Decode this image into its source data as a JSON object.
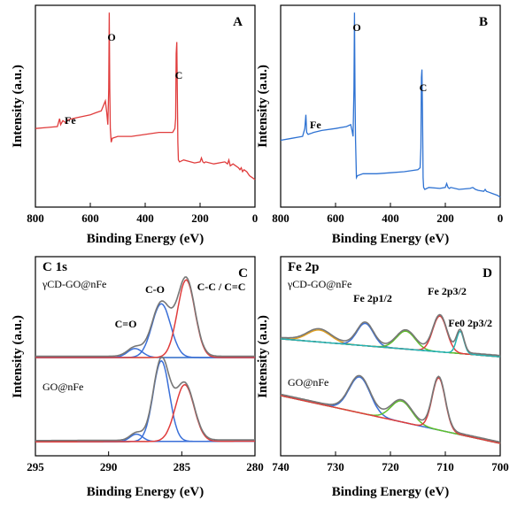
{
  "chart_data": [
    {
      "type": "line",
      "panel_letter": "A",
      "xlabel": "Binding Energy (eV)",
      "ylabel": "Intensity (a.u.)",
      "xlim": [
        800,
        0
      ],
      "x_ticks": [
        "800",
        "600",
        "400",
        "200",
        "0"
      ],
      "color": "#e03c3c",
      "peak_labels": [
        "Fe",
        "O",
        "C"
      ],
      "series": [
        {
          "x": [
            800,
            760,
            720,
            712,
            708,
            700,
            690,
            680,
            650,
            600,
            580,
            560,
            545,
            540,
            536,
            533,
            531,
            529,
            527,
            524,
            520,
            500,
            450,
            400,
            350,
            300,
            292,
            289,
            287,
            285,
            283,
            281,
            279,
            275,
            260,
            220,
            200,
            195,
            190,
            185,
            180,
            150,
            110,
            100,
            95,
            90,
            80,
            60,
            55,
            50,
            45,
            40,
            30,
            20,
            10,
            0
          ],
          "y": [
            0.4,
            0.405,
            0.41,
            0.45,
            0.42,
            0.44,
            0.43,
            0.445,
            0.455,
            0.47,
            0.48,
            0.49,
            0.54,
            0.48,
            0.42,
            0.6,
            0.99,
            0.6,
            0.4,
            0.33,
            0.35,
            0.36,
            0.36,
            0.37,
            0.38,
            0.38,
            0.4,
            0.45,
            0.78,
            0.84,
            0.58,
            0.33,
            0.24,
            0.23,
            0.24,
            0.225,
            0.23,
            0.25,
            0.23,
            0.225,
            0.23,
            0.22,
            0.23,
            0.22,
            0.24,
            0.21,
            0.22,
            0.2,
            0.19,
            0.2,
            0.18,
            0.19,
            0.18,
            0.16,
            0.15,
            0.14
          ]
        }
      ]
    },
    {
      "type": "line",
      "panel_letter": "B",
      "xlabel": "Binding Energy (eV)",
      "ylabel": "Intensity (a.u.)",
      "xlim": [
        800,
        0
      ],
      "x_ticks": [
        "800",
        "600",
        "400",
        "200",
        "0"
      ],
      "color": "#2e72d2",
      "peak_labels": [
        "Fe",
        "O",
        "C"
      ],
      "series": [
        {
          "x": [
            800,
            760,
            720,
            712,
            708,
            705,
            700,
            690,
            680,
            650,
            600,
            560,
            545,
            540,
            536,
            533,
            531,
            529,
            527,
            524,
            520,
            500,
            450,
            400,
            350,
            300,
            292,
            289,
            287,
            285,
            283,
            281,
            279,
            275,
            260,
            220,
            200,
            195,
            190,
            185,
            180,
            150,
            110,
            100,
            90,
            80,
            60,
            55,
            50,
            40,
            30,
            20,
            10,
            0
          ],
          "y": [
            0.34,
            0.35,
            0.36,
            0.4,
            0.47,
            0.38,
            0.37,
            0.375,
            0.38,
            0.39,
            0.4,
            0.41,
            0.42,
            0.39,
            0.36,
            0.6,
            0.99,
            0.58,
            0.34,
            0.15,
            0.16,
            0.17,
            0.17,
            0.175,
            0.18,
            0.19,
            0.2,
            0.3,
            0.66,
            0.7,
            0.45,
            0.15,
            0.1,
            0.09,
            0.1,
            0.095,
            0.1,
            0.12,
            0.1,
            0.095,
            0.1,
            0.09,
            0.095,
            0.1,
            0.09,
            0.085,
            0.08,
            0.09,
            0.08,
            0.075,
            0.07,
            0.065,
            0.06,
            0.05
          ]
        }
      ]
    },
    {
      "type": "line",
      "panel_letter": "C",
      "panel_title": "C 1s",
      "xlabel": "Binding Energy (eV)",
      "ylabel": "Intensity (a.u.)",
      "xlim": [
        295,
        280
      ],
      "x_ticks": [
        "295",
        "290",
        "285",
        "280"
      ],
      "sample_labels": [
        "γCD-GO@nFe",
        "GO@nFe"
      ],
      "peak_labels": [
        "C=O",
        "C-O",
        "C-C / C=C"
      ],
      "top": {
        "offset": 0.575,
        "baseline": [
          0.0,
          0.0
        ],
        "components": [
          {
            "name": "C=O",
            "center": 288.2,
            "height": 0.06,
            "fwhm": 1.2,
            "color": "#3a6fd8"
          },
          {
            "name": "C-O",
            "center": 286.4,
            "height": 0.36,
            "fwhm": 1.5,
            "color": "#3a6fd8"
          },
          {
            "name": "C-C / C=C",
            "center": 284.7,
            "height": 0.52,
            "fwhm": 1.4,
            "color": "#e03c3c"
          }
        ]
      },
      "bottom": {
        "offset": 0.0,
        "baseline": [
          0.01,
          0.015
        ],
        "components": [
          {
            "name": "C=O",
            "center": 288.1,
            "height": 0.05,
            "fwhm": 1.0,
            "color": "#3a6fd8"
          },
          {
            "name": "C-O",
            "center": 286.4,
            "height": 0.54,
            "fwhm": 1.3,
            "color": "#3a6fd8"
          },
          {
            "name": "C-C / C=C",
            "center": 284.8,
            "height": 0.38,
            "fwhm": 1.5,
            "color": "#e03c3c"
          }
        ]
      }
    },
    {
      "type": "line",
      "panel_letter": "D",
      "panel_title": "Fe 2p",
      "xlabel": "Binding Energy (eV)",
      "ylabel": "Intensity (a.u.)",
      "xlim": [
        740,
        700
      ],
      "x_ticks": [
        "740",
        "730",
        "720",
        "710",
        "700"
      ],
      "sample_labels": [
        "γCD-GO@nFe",
        "GO@nFe"
      ],
      "peak_labels": [
        "Fe 2p1/2",
        "Fe 2p3/2",
        "Fe0 2p3/2"
      ],
      "top": {
        "offset": 0.6,
        "baseline": [
          0.1,
          -0.02
        ],
        "components": [
          {
            "center": 733.0,
            "height": 0.08,
            "fwhm": 5.0,
            "color": "#e0a020"
          },
          {
            "center": 724.6,
            "height": 0.15,
            "fwhm": 3.5,
            "color": "#3a6fd8"
          },
          {
            "center": 717.2,
            "height": 0.12,
            "fwhm": 4.0,
            "color": "#5fbf2a"
          },
          {
            "center": 711.0,
            "height": 0.24,
            "fwhm": 3.0,
            "color": "#e03c3c"
          },
          {
            "center": 707.3,
            "height": 0.15,
            "fwhm": 1.6,
            "color": "#22b3b3"
          }
        ]
      },
      "bottom": {
        "offset": 0.0,
        "baseline": [
          0.32,
          0.0
        ],
        "components": [
          {
            "center": 725.6,
            "height": 0.24,
            "fwhm": 4.5,
            "color": "#3a6fd8"
          },
          {
            "center": 718.0,
            "height": 0.14,
            "fwhm": 4.5,
            "color": "#5fbf2a"
          },
          {
            "center": 711.2,
            "height": 0.35,
            "fwhm": 2.8,
            "color": "#e03c3c"
          }
        ]
      }
    }
  ]
}
